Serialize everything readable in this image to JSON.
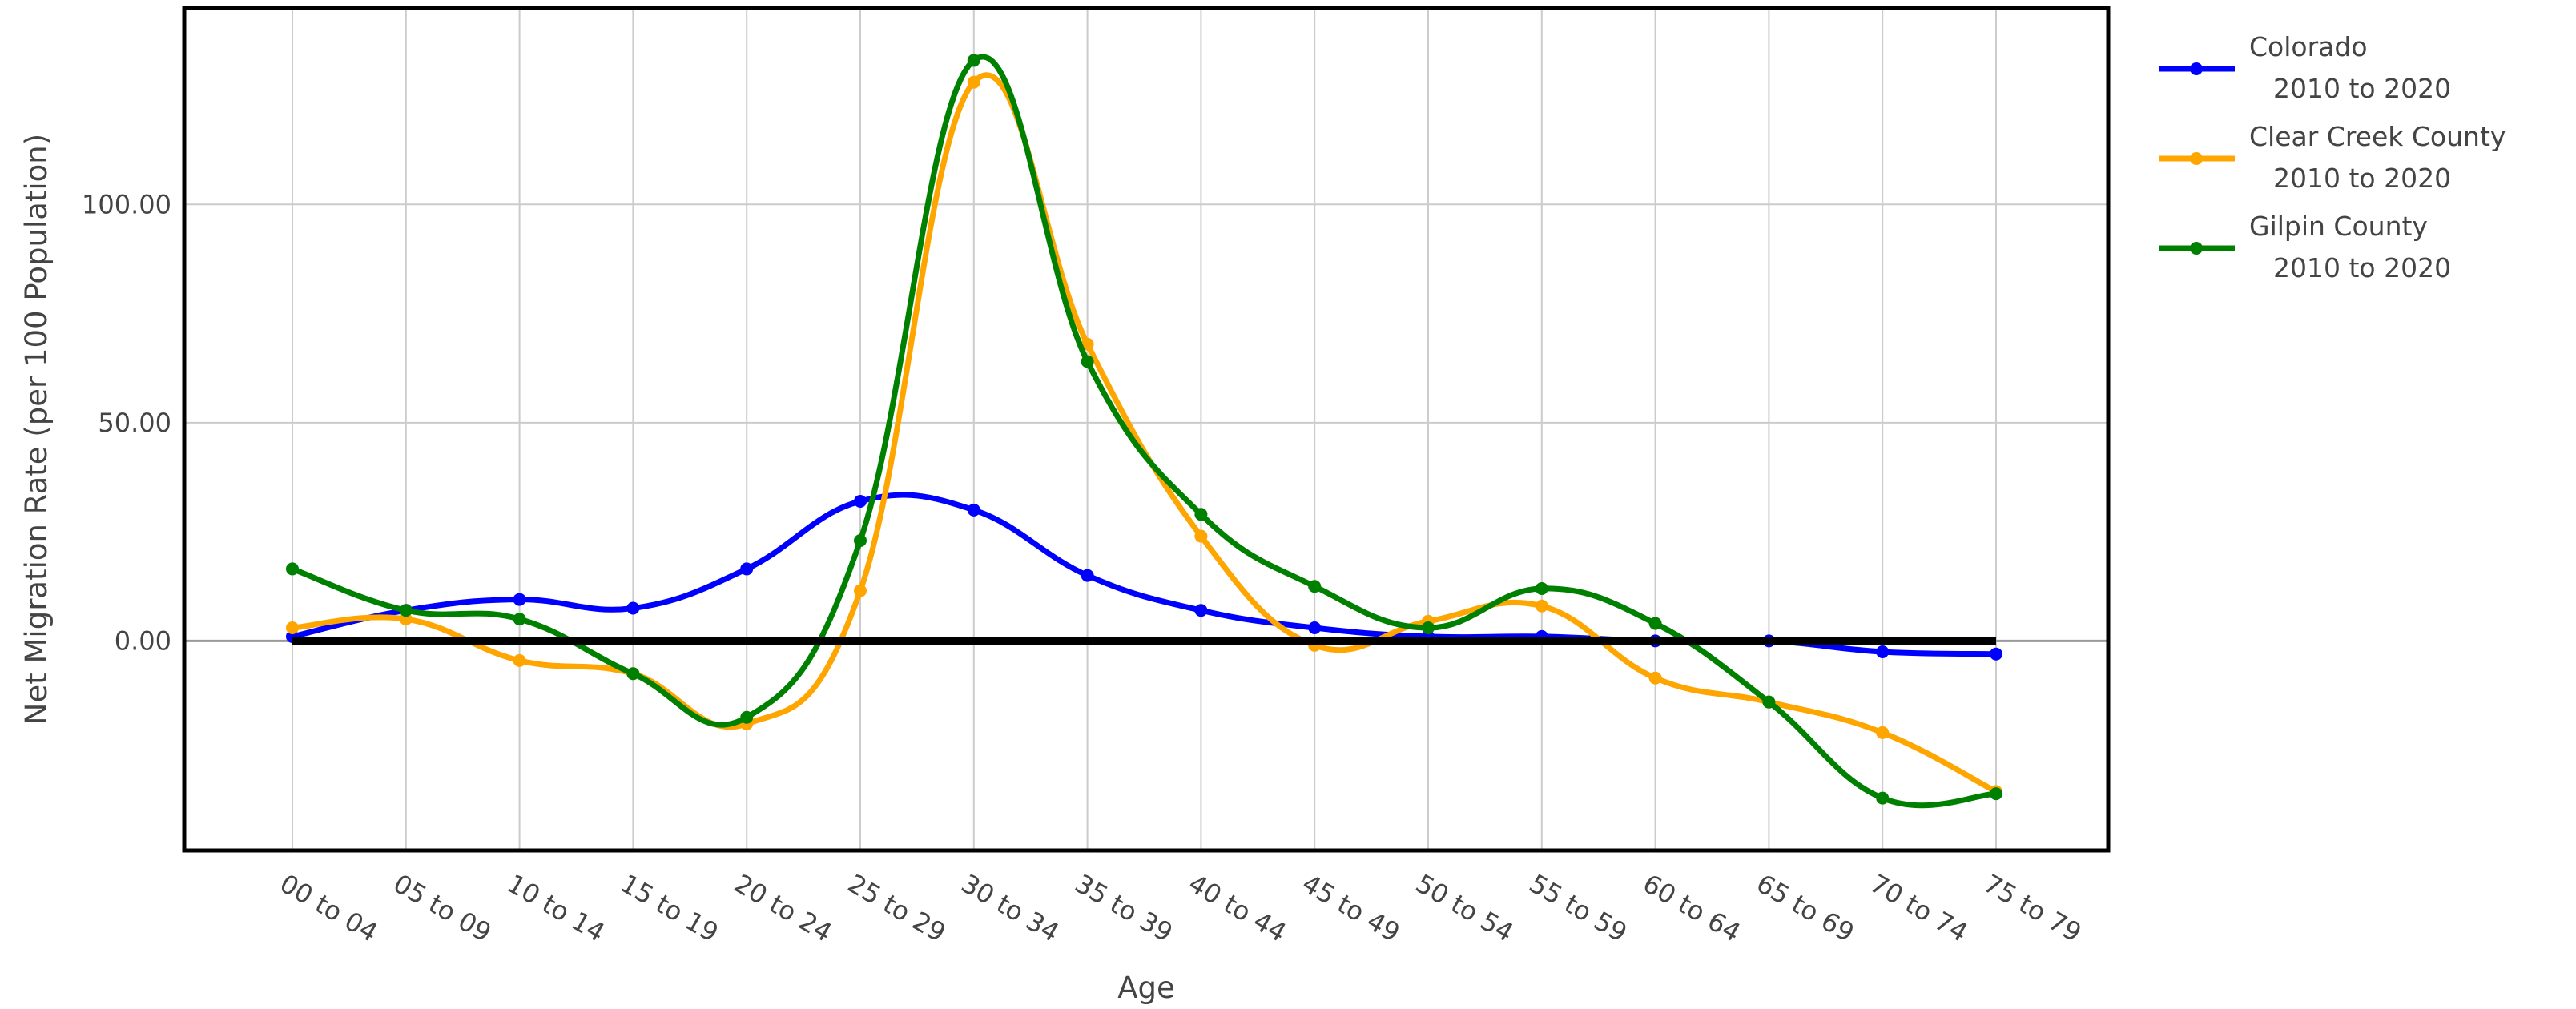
{
  "chart_data": {
    "type": "line",
    "title": "",
    "xlabel": "Age",
    "ylabel": "Net Migration Rate (per 100 Population)",
    "categories": [
      "00 to 04",
      "05 to 09",
      "10 to 14",
      "15 to 19",
      "20 to 24",
      "25 to 29",
      "30 to 34",
      "35 to 39",
      "40 to 44",
      "45 to 49",
      "50 to 54",
      "55 to 59",
      "60 to 64",
      "65 to 69",
      "70 to 74",
      "75 to 79"
    ],
    "ylim": [
      -48,
      145
    ],
    "yticks": [
      0,
      50,
      100
    ],
    "ytick_labels": [
      "0.00",
      "50.00",
      "100.00"
    ],
    "grid": true,
    "legend_position": "right",
    "reference_line": {
      "y": 0,
      "color": "#000000"
    },
    "series": [
      {
        "name": "Colorado",
        "name_line2": "2010 to 2020",
        "color": "#0000ff",
        "values": [
          1.0,
          7.0,
          9.5,
          7.5,
          16.5,
          32.0,
          30.0,
          15.0,
          7.0,
          3.0,
          1.0,
          1.0,
          0.0,
          0.0,
          -2.5,
          -3.0
        ]
      },
      {
        "name": "Clear Creek County",
        "name_line2": "2010 to 2020",
        "color": "#ffa500",
        "values": [
          3.0,
          5.0,
          -4.5,
          -7.5,
          -19.0,
          11.5,
          128.0,
          68.0,
          24.0,
          -1.0,
          4.5,
          8.0,
          -8.5,
          -14.0,
          -21.0,
          -34.5
        ]
      },
      {
        "name": "Gilpin County",
        "name_line2": "2010 to 2020",
        "color": "#008000",
        "values": [
          16.5,
          7.0,
          5.0,
          -7.5,
          -17.5,
          23.0,
          133.0,
          64.0,
          29.0,
          12.5,
          3.0,
          12.0,
          4.0,
          -14.0,
          -36.0,
          -35.0
        ]
      }
    ]
  }
}
